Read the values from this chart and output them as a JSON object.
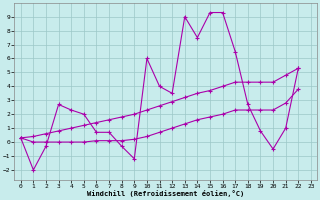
{
  "xlabel": "Windchill (Refroidissement éolien,°C)",
  "xlim": [
    -0.5,
    23.5
  ],
  "ylim": [
    -2.7,
    10.0
  ],
  "yticks": [
    -2,
    -1,
    0,
    1,
    2,
    3,
    4,
    5,
    6,
    7,
    8,
    9
  ],
  "xticks": [
    0,
    1,
    2,
    3,
    4,
    5,
    6,
    7,
    8,
    9,
    10,
    11,
    12,
    13,
    14,
    15,
    16,
    17,
    18,
    19,
    20,
    21,
    22,
    23
  ],
  "bg_color": "#c8ecec",
  "grid_color": "#9cc8c8",
  "line_color": "#aa00aa",
  "line1_x": [
    0,
    1,
    2,
    3,
    4,
    5,
    6,
    7,
    8,
    9,
    10,
    11,
    12,
    13,
    14,
    15,
    16,
    17,
    18,
    19,
    20,
    21,
    22
  ],
  "line1_y": [
    0.3,
    -2.0,
    -0.3,
    2.7,
    2.3,
    2.0,
    0.7,
    0.7,
    -0.3,
    -1.2,
    6.0,
    4.0,
    3.5,
    9.0,
    7.5,
    9.3,
    9.3,
    6.5,
    2.7,
    0.8,
    -0.5,
    1.0,
    5.3
  ],
  "line2_x": [
    0,
    1,
    2,
    3,
    4,
    5,
    6,
    7,
    8,
    9,
    10,
    11,
    12,
    13,
    14,
    15,
    16,
    17,
    18,
    19,
    20,
    21,
    22
  ],
  "line2_y": [
    0.3,
    0.4,
    0.6,
    0.8,
    1.0,
    1.2,
    1.4,
    1.6,
    1.8,
    2.0,
    2.3,
    2.6,
    2.9,
    3.2,
    3.5,
    3.7,
    4.0,
    4.3,
    4.3,
    4.3,
    4.3,
    4.8,
    5.3
  ],
  "line3_x": [
    0,
    1,
    2,
    3,
    4,
    5,
    6,
    7,
    8,
    9,
    10,
    11,
    12,
    13,
    14,
    15,
    16,
    17,
    18,
    19,
    20,
    21,
    22
  ],
  "line3_y": [
    0.3,
    0.0,
    0.0,
    0.0,
    0.0,
    0.0,
    0.1,
    0.1,
    0.1,
    0.2,
    0.4,
    0.7,
    1.0,
    1.3,
    1.6,
    1.8,
    2.0,
    2.3,
    2.3,
    2.3,
    2.3,
    2.8,
    3.8
  ]
}
